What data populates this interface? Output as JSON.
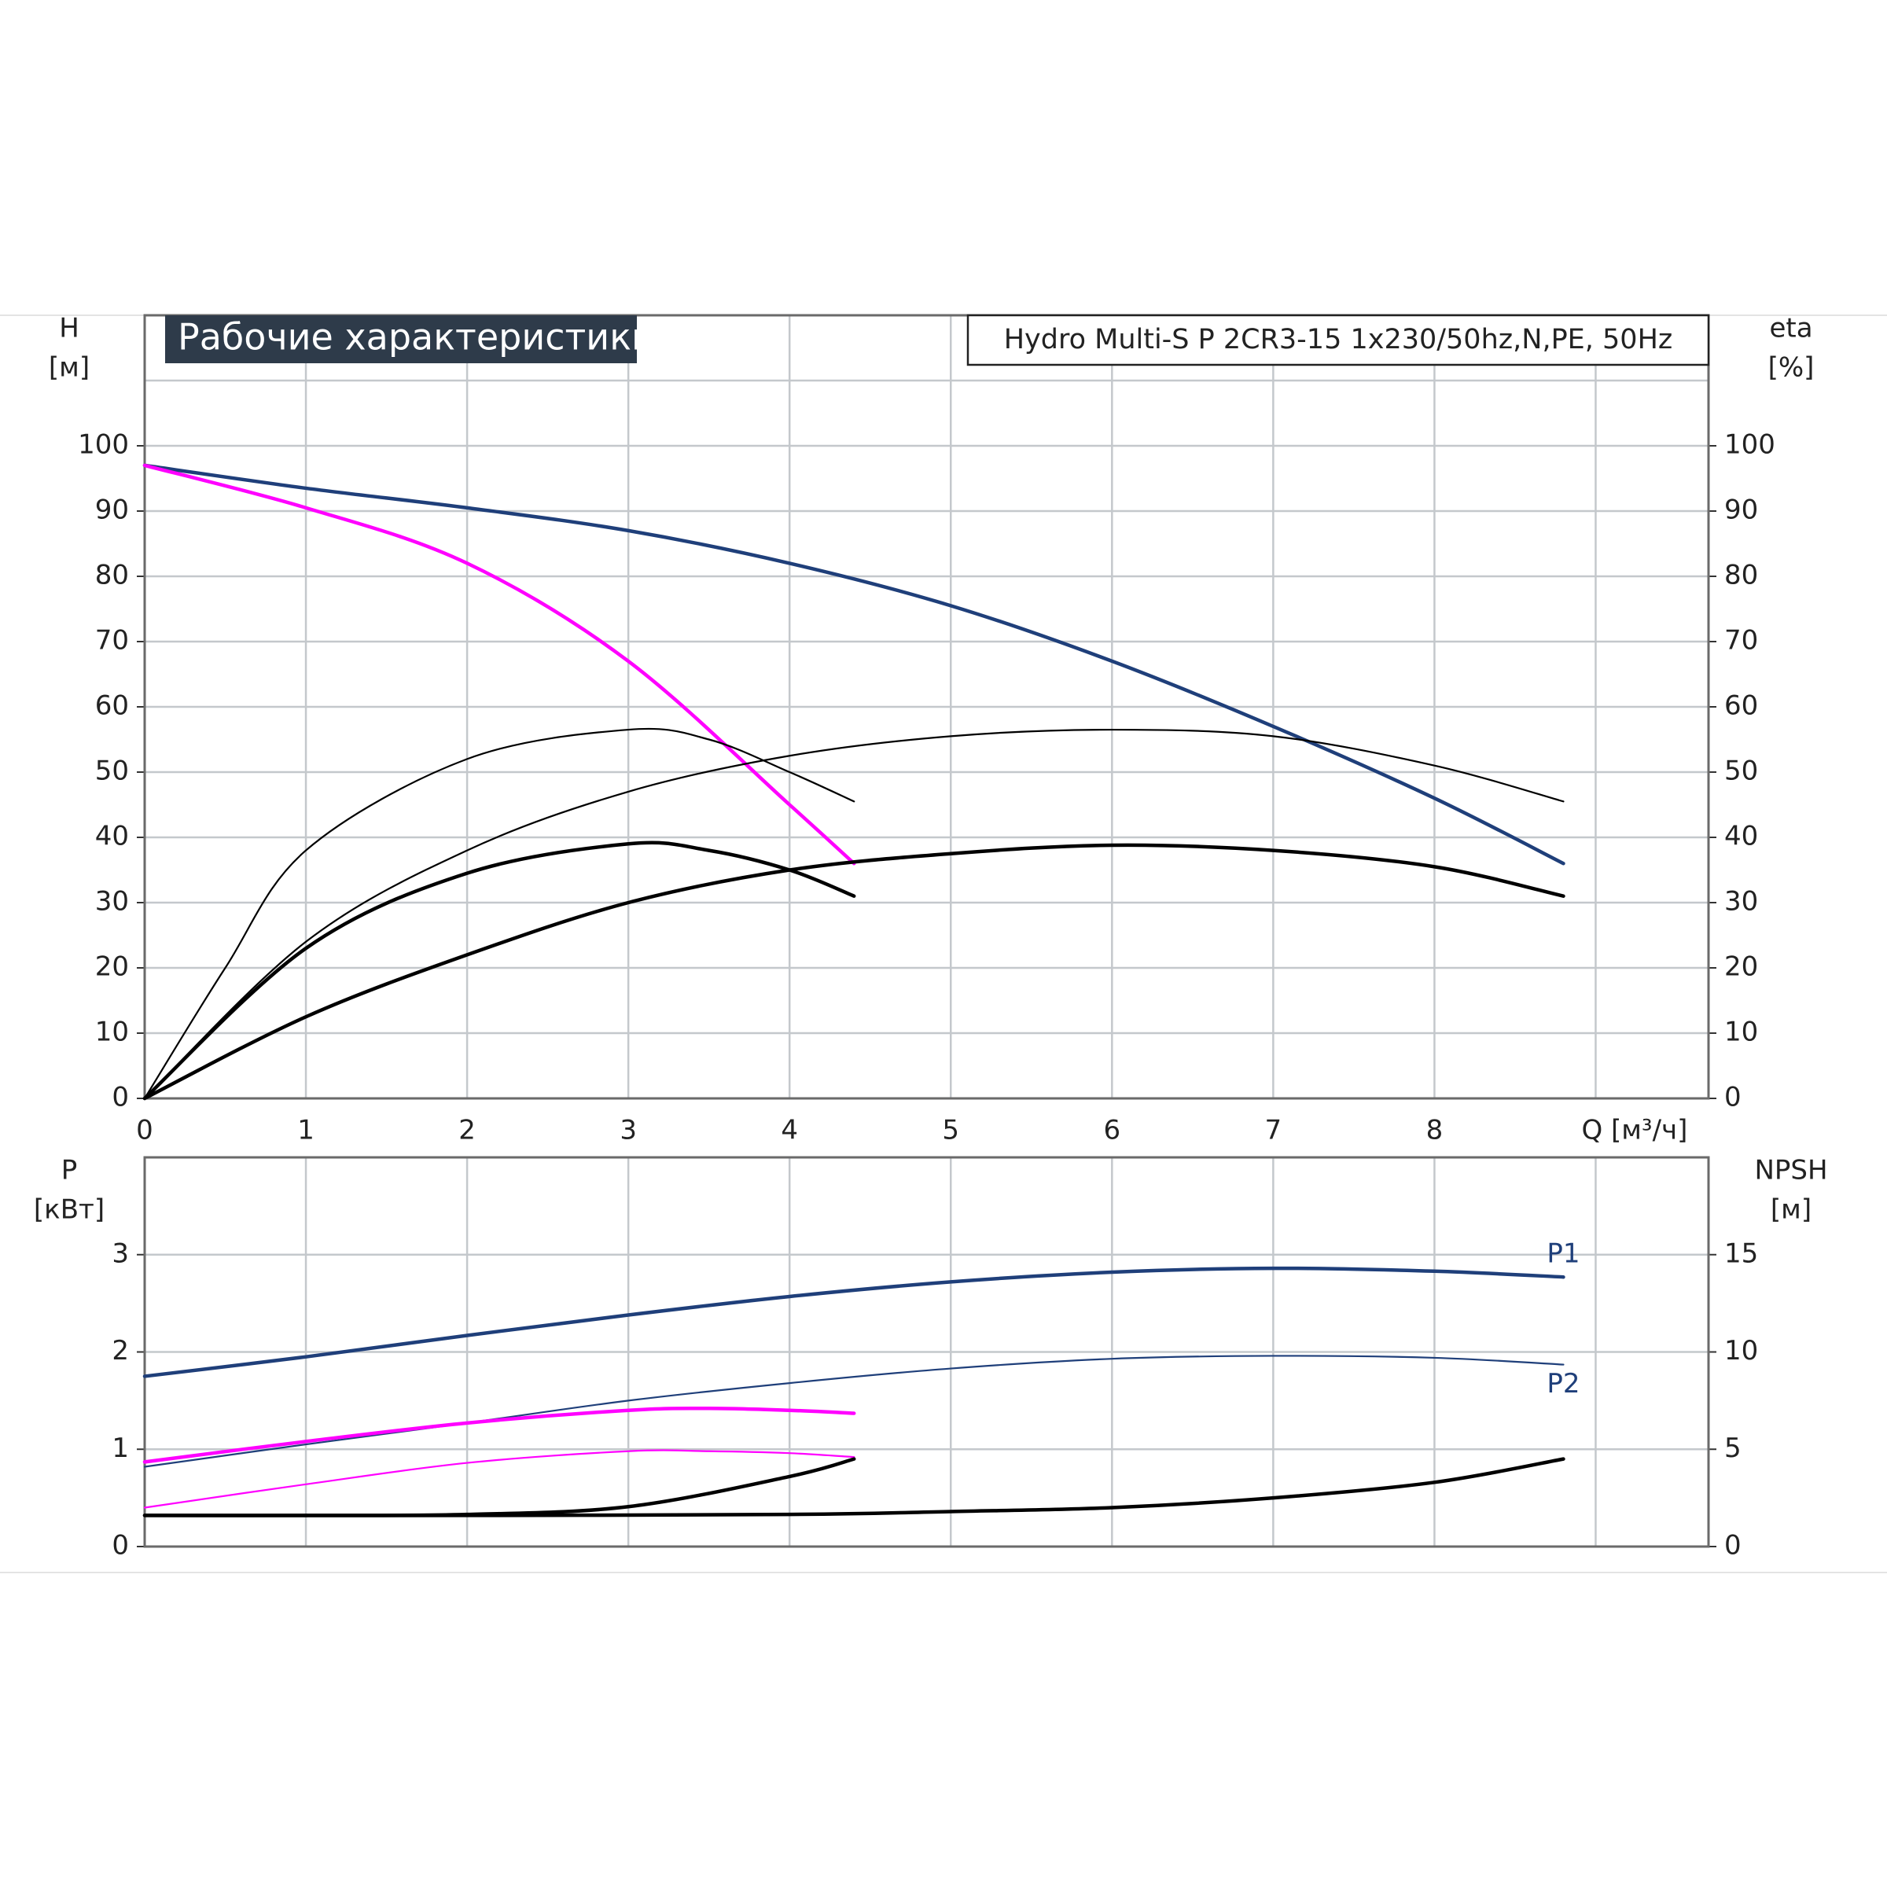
{
  "chart_data": [
    {
      "type": "line",
      "title": "Рабочие характеристики",
      "subtitle": "Hydro Multi-S P 2CR3-15 1x230/50hz,N,PE, 50Hz",
      "ylabel": [
        "H",
        "[м]"
      ],
      "y2label": [
        "eta",
        "[%]"
      ],
      "xlim": [
        0,
        9.7
      ],
      "xticks": [
        0,
        1,
        2,
        3,
        4,
        5,
        6,
        7,
        8,
        {
          "value": 9,
          "label": "Q [м³/ч]"
        }
      ],
      "show_xtick_labels": true,
      "ylim": [
        0,
        120
      ],
      "yticks": [
        0,
        10,
        20,
        30,
        40,
        50,
        60,
        70,
        80,
        90,
        100
      ],
      "y2lim": [
        0,
        120
      ],
      "y2ticks": [
        0,
        10,
        20,
        30,
        40,
        50,
        60,
        70,
        80,
        90,
        100
      ],
      "grid": true,
      "series": [
        {
          "color": "#1f3f7a",
          "width": "thick",
          "x": [
            0,
            1,
            2,
            3,
            4,
            5,
            6,
            7,
            8,
            8.8
          ],
          "values": [
            97,
            93.5,
            90.5,
            87,
            82,
            75.5,
            67,
            57,
            46,
            36
          ]
        },
        {
          "color": "#ff00ff",
          "width": "thick",
          "x": [
            0,
            1,
            2,
            3,
            4,
            4.4
          ],
          "values": [
            97,
            90.5,
            82,
            67,
            45,
            36
          ]
        },
        {
          "color": "#000000",
          "width": "thin",
          "x": [
            0,
            0.5,
            1,
            2,
            3,
            3.5,
            4,
            4.4
          ],
          "values": [
            0,
            20,
            38,
            52,
            56.5,
            55,
            50,
            45.5
          ],
          "axis": "y2"
        },
        {
          "color": "#000000",
          "width": "thin",
          "x": [
            0,
            1,
            2,
            3,
            4,
            5,
            6,
            7,
            8,
            8.8
          ],
          "values": [
            0,
            24,
            38,
            47,
            52.5,
            55.5,
            56.5,
            55.5,
            51,
            45.5
          ],
          "axis": "y2"
        },
        {
          "color": "#000000",
          "width": "thick",
          "x": [
            0,
            1,
            2,
            3,
            3.5,
            4,
            4.4
          ],
          "values": [
            0,
            23,
            34.5,
            39,
            38,
            35,
            31
          ],
          "axis": "y2"
        },
        {
          "color": "#000000",
          "width": "thick",
          "x": [
            0,
            1,
            2,
            3,
            4,
            5,
            6,
            7,
            8,
            8.8
          ],
          "values": [
            0,
            12.5,
            22,
            30,
            35,
            37.5,
            38.8,
            38,
            35.5,
            31
          ],
          "axis": "y2"
        }
      ]
    },
    {
      "type": "line",
      "ylabel": [
        "P",
        "[кВт]"
      ],
      "y2label": [
        "NPSH",
        "[м]"
      ],
      "xlim": [
        0,
        9.7
      ],
      "xticks": [
        0,
        1,
        2,
        3,
        4,
        5,
        6,
        7,
        8,
        9
      ],
      "show_xtick_labels": false,
      "ylim": [
        0,
        4
      ],
      "yticks": [
        0,
        1,
        2,
        3
      ],
      "y2lim": [
        0,
        20
      ],
      "y2ticks": [
        0,
        5,
        10,
        15
      ],
      "grid": true,
      "series": [
        {
          "name": "P1",
          "color": "#1f3f7a",
          "width": "thick",
          "x": [
            0,
            1,
            2,
            3,
            4,
            5,
            6,
            7,
            8,
            8.8
          ],
          "values": [
            1.75,
            1.95,
            2.17,
            2.38,
            2.57,
            2.72,
            2.82,
            2.86,
            2.83,
            2.77
          ]
        },
        {
          "name": "P2",
          "color": "#1f3f7a",
          "width": "thin",
          "x": [
            0,
            1,
            2,
            3,
            4,
            5,
            6,
            7,
            8,
            8.8
          ],
          "values": [
            0.82,
            1.05,
            1.27,
            1.5,
            1.68,
            1.83,
            1.93,
            1.96,
            1.94,
            1.87
          ]
        },
        {
          "color": "#ff00ff",
          "width": "thick",
          "x": [
            0,
            1,
            2,
            3,
            3.5,
            4,
            4.4
          ],
          "values": [
            0.87,
            1.08,
            1.27,
            1.4,
            1.42,
            1.4,
            1.37
          ]
        },
        {
          "color": "#ff00ff",
          "width": "thin",
          "x": [
            0,
            1,
            2,
            3,
            3.5,
            4,
            4.4
          ],
          "values": [
            0.4,
            0.64,
            0.86,
            0.98,
            0.98,
            0.96,
            0.92
          ]
        },
        {
          "color": "#000000",
          "width": "thick",
          "x": [
            0,
            1,
            2,
            3,
            4,
            4.4
          ],
          "values": [
            1.6,
            1.6,
            1.65,
            2.05,
            3.6,
            4.5
          ],
          "axis": "y2"
        },
        {
          "color": "#000000",
          "width": "thick",
          "x": [
            0,
            2,
            4,
            5,
            6,
            7,
            8,
            8.8
          ],
          "values": [
            1.6,
            1.6,
            1.65,
            1.8,
            2.0,
            2.5,
            3.3,
            4.5
          ],
          "axis": "y2"
        }
      ]
    }
  ]
}
